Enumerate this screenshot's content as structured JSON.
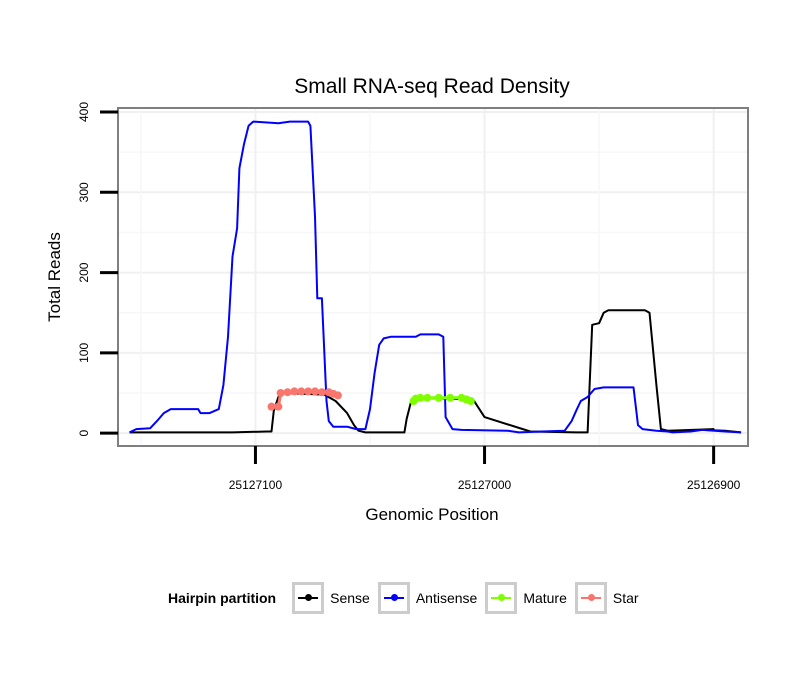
{
  "chart_data": {
    "type": "line",
    "title": "Small RNA-seq Read Density",
    "xlabel": "Genomic Position",
    "ylabel": "Total Reads",
    "x_reversed": true,
    "xlim": [
      25127160,
      25126885
    ],
    "ylim": [
      -16,
      405
    ],
    "x_ticks": [
      25127100,
      25127000,
      25126900
    ],
    "x_tick_labels": [
      "25127100",
      "25127000",
      "25126900"
    ],
    "y_ticks": [
      0,
      100,
      200,
      300,
      400
    ],
    "y_tick_labels": [
      "0",
      "100",
      "200",
      "300",
      "400"
    ],
    "legend_title": "Hairpin partition",
    "legend_position": "bottom",
    "series": [
      {
        "name": "Sense",
        "color": "#000000",
        "marker": false,
        "points": [
          [
            25127155,
            1
          ],
          [
            25127110,
            1
          ],
          [
            25127095,
            2
          ],
          [
            25127093,
            2
          ],
          [
            25127092,
            28
          ],
          [
            25127090,
            45
          ],
          [
            25127088,
            50
          ],
          [
            25127070,
            48
          ],
          [
            25127065,
            40
          ],
          [
            25127060,
            25
          ],
          [
            25127057,
            10
          ],
          [
            25127055,
            3
          ],
          [
            25127052,
            1
          ],
          [
            25127035,
            1
          ],
          [
            25127034,
            18
          ],
          [
            25127032,
            40
          ],
          [
            25127030,
            44
          ],
          [
            25127005,
            42
          ],
          [
            25127000,
            20
          ],
          [
            25126980,
            2
          ],
          [
            25126960,
            1
          ],
          [
            25126955,
            1
          ],
          [
            25126953,
            135
          ],
          [
            25126950,
            137
          ],
          [
            25126948,
            150
          ],
          [
            25126946,
            153
          ],
          [
            25126930,
            153
          ],
          [
            25126928,
            150
          ],
          [
            25126927,
            120
          ],
          [
            25126925,
            60
          ],
          [
            25126923,
            5
          ],
          [
            25126920,
            3
          ],
          [
            25126900,
            5
          ],
          [
            25126905,
            4
          ],
          [
            25126895,
            3
          ],
          [
            25126888,
            1
          ]
        ]
      },
      {
        "name": "Antisense",
        "color": "#0000ff",
        "marker": false,
        "points": [
          [
            25127155,
            1
          ],
          [
            25127152,
            5
          ],
          [
            25127146,
            6
          ],
          [
            25127143,
            15
          ],
          [
            25127140,
            25
          ],
          [
            25127137,
            30
          ],
          [
            25127125,
            30
          ],
          [
            25127124,
            25
          ],
          [
            25127120,
            25
          ],
          [
            25127116,
            30
          ],
          [
            25127114,
            60
          ],
          [
            25127112,
            120
          ],
          [
            25127110,
            220
          ],
          [
            25127108,
            255
          ],
          [
            25127107,
            330
          ],
          [
            25127105,
            360
          ],
          [
            25127103,
            383
          ],
          [
            25127101,
            388
          ],
          [
            25127090,
            386
          ],
          [
            25127085,
            388
          ],
          [
            25127077,
            388
          ],
          [
            25127076,
            383
          ],
          [
            25127074,
            270
          ],
          [
            25127073,
            168
          ],
          [
            25127071,
            168
          ],
          [
            25127069,
            40
          ],
          [
            25127068,
            15
          ],
          [
            25127066,
            8
          ],
          [
            25127060,
            8
          ],
          [
            25127056,
            5
          ],
          [
            25127052,
            5
          ],
          [
            25127050,
            30
          ],
          [
            25127048,
            75
          ],
          [
            25127046,
            110
          ],
          [
            25127044,
            118
          ],
          [
            25127041,
            120
          ],
          [
            25127030,
            120
          ],
          [
            25127028,
            123
          ],
          [
            25127020,
            123
          ],
          [
            25127018,
            120
          ],
          [
            25127017,
            20
          ],
          [
            25127014,
            5
          ],
          [
            25127010,
            4
          ],
          [
            25126990,
            3
          ],
          [
            25126985,
            1
          ],
          [
            25126975,
            2
          ],
          [
            25126965,
            3
          ],
          [
            25126962,
            15
          ],
          [
            25126960,
            28
          ],
          [
            25126958,
            40
          ],
          [
            25126955,
            45
          ],
          [
            25126952,
            55
          ],
          [
            25126948,
            57
          ],
          [
            25126935,
            57
          ],
          [
            25126933,
            10
          ],
          [
            25126931,
            5
          ],
          [
            25126925,
            3
          ],
          [
            25126920,
            2
          ],
          [
            25126918,
            1
          ],
          [
            25126910,
            2
          ],
          [
            25126905,
            4
          ],
          [
            25126895,
            2
          ],
          [
            25126888,
            1
          ]
        ]
      },
      {
        "name": "Mature",
        "color": "#7fff00",
        "marker": true,
        "points": [
          [
            25127031,
            40
          ],
          [
            25127030,
            43
          ],
          [
            25127028,
            44
          ],
          [
            25127025,
            44
          ],
          [
            25127020,
            44
          ],
          [
            25127015,
            44
          ],
          [
            25127010,
            44
          ],
          [
            25127008,
            42
          ],
          [
            25127006,
            40
          ]
        ]
      },
      {
        "name": "Star",
        "color": "#f8766d",
        "marker": true,
        "points": [
          [
            25127093,
            33
          ],
          [
            25127090,
            33
          ],
          [
            25127089,
            50
          ],
          [
            25127086,
            51
          ],
          [
            25127083,
            52
          ],
          [
            25127080,
            52
          ],
          [
            25127077,
            52
          ],
          [
            25127074,
            52
          ],
          [
            25127071,
            51
          ],
          [
            25127068,
            51
          ],
          [
            25127066,
            49
          ],
          [
            25127064,
            47
          ]
        ]
      }
    ]
  }
}
